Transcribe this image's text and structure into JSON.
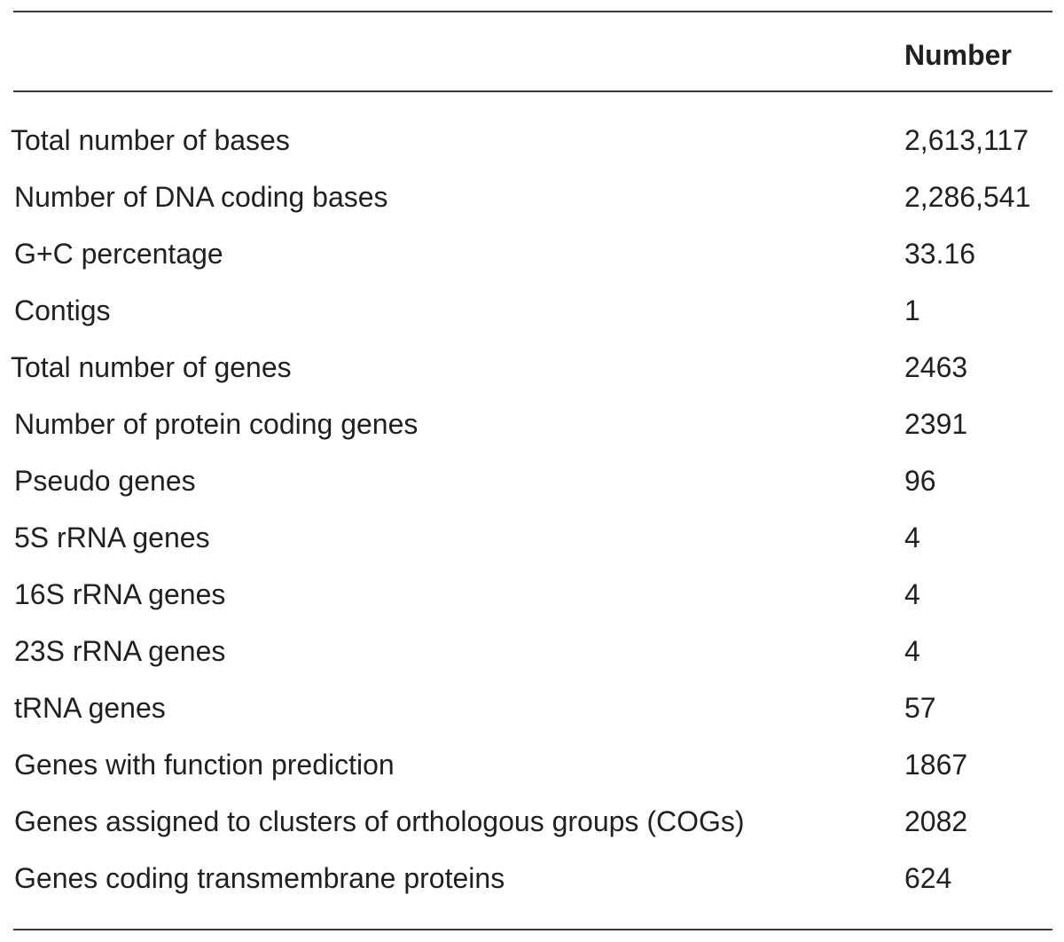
{
  "table": {
    "header": {
      "label": "",
      "value": "Number"
    },
    "rows": [
      {
        "label": "Total number of bases",
        "value": "2,613,117"
      },
      {
        "label": "Number of DNA coding bases",
        "value": "2,286,541"
      },
      {
        "label": "G+C percentage",
        "value": "33.16"
      },
      {
        "label": "Contigs",
        "value": "1"
      },
      {
        "label": "Total number of genes",
        "value": "2463"
      },
      {
        "label": "Number of protein coding genes",
        "value": "2391"
      },
      {
        "label": "Pseudo genes",
        "value": "96"
      },
      {
        "label": "5S rRNA genes",
        "value": "4"
      },
      {
        "label": "16S rRNA genes",
        "value": "4"
      },
      {
        "label": "23S rRNA genes",
        "value": "4"
      },
      {
        "label": "tRNA genes",
        "value": "57"
      },
      {
        "label": "Genes with function prediction",
        "value": "1867"
      },
      {
        "label": "Genes assigned to clusters of orthologous groups (COGs)",
        "value": "2082"
      },
      {
        "label": "Genes coding transmembrane proteins",
        "value": "624"
      }
    ]
  }
}
